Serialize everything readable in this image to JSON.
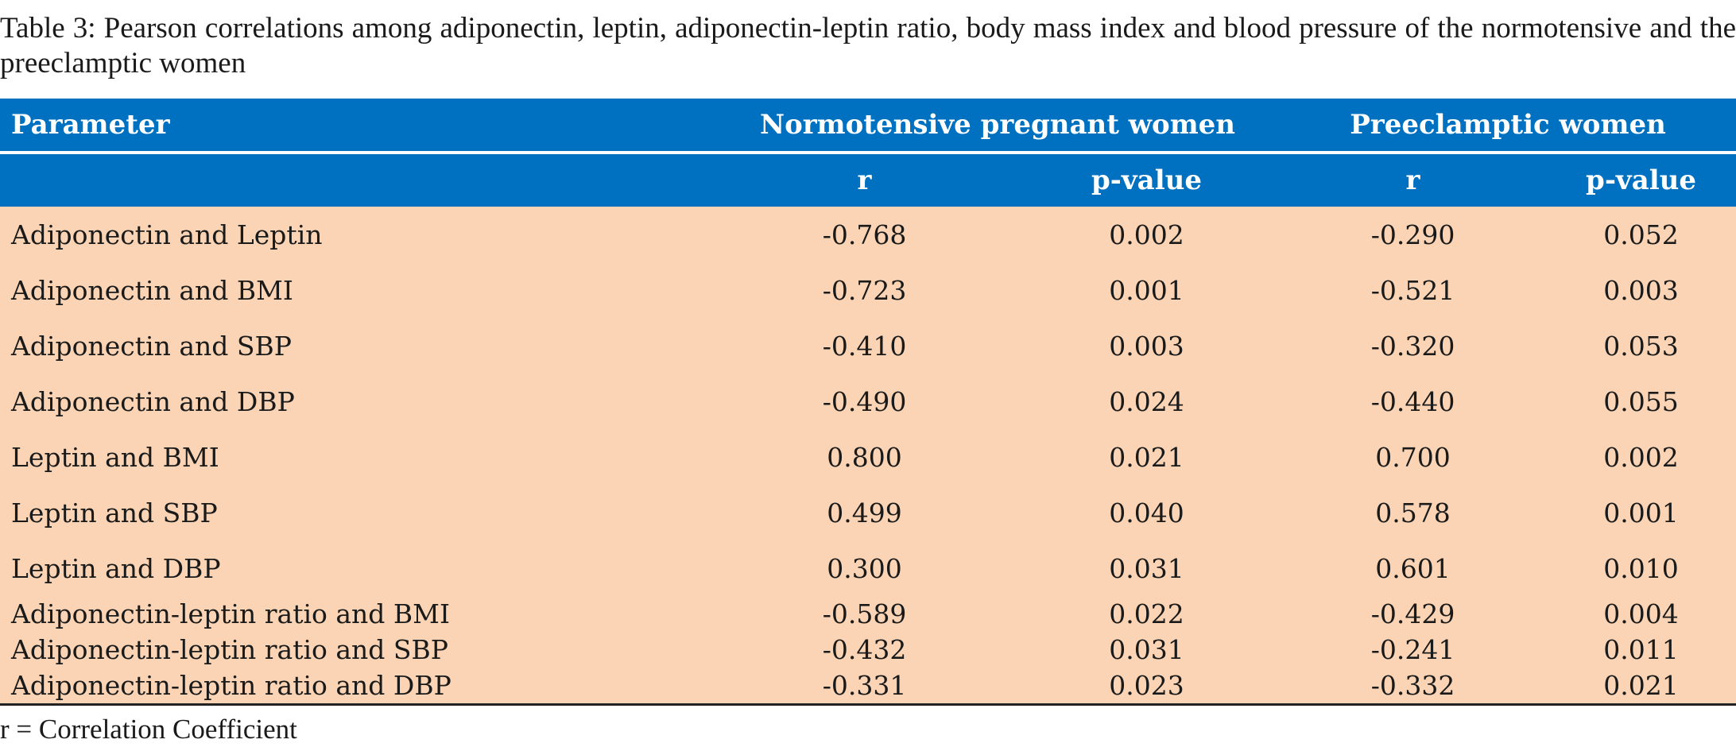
{
  "caption": "Table 3: Pearson correlations among adiponectin, leptin, adiponectin-leptin ratio, body mass index and blood pressure of the normotensive and the preeclamptic women",
  "header": {
    "parameter": "Parameter",
    "group1": "Normotensive pregnant women",
    "group2": "Preeclamptic women",
    "r": "r",
    "p": "p-value"
  },
  "colors": {
    "header_bg": "#0070c0",
    "body_bg": "#fad4b4"
  },
  "rows": [
    {
      "parameter": "Adiponectin and Leptin",
      "n_r": "-0.768",
      "n_p": "0.002",
      "p_r": "-0.290",
      "p_p": "0.052"
    },
    {
      "parameter": "Adiponectin and BMI",
      "n_r": "-0.723",
      "n_p": "0.001",
      "p_r": "-0.521",
      "p_p": "0.003"
    },
    {
      "parameter": "Adiponectin and SBP",
      "n_r": "-0.410",
      "n_p": "0.003",
      "p_r": "-0.320",
      "p_p": "0.053"
    },
    {
      "parameter": "Adiponectin and DBP",
      "n_r": "-0.490",
      "n_p": "0.024",
      "p_r": "-0.440",
      "p_p": "0.055"
    },
    {
      "parameter": "Leptin and BMI",
      "n_r": "0.800",
      "n_p": "0.021",
      "p_r": "0.700",
      "p_p": "0.002"
    },
    {
      "parameter": "Leptin and SBP",
      "n_r": "0.499",
      "n_p": "0.040",
      "p_r": "0.578",
      "p_p": "0.001"
    },
    {
      "parameter": "Leptin and DBP",
      "n_r": "0.300",
      "n_p": "0.031",
      "p_r": "0.601",
      "p_p": "0.010"
    },
    {
      "parameter": "Adiponectin-leptin ratio and BMI",
      "n_r": "-0.589",
      "n_p": "0.022",
      "p_r": "-0.429",
      "p_p": "0.004"
    },
    {
      "parameter": "Adiponectin-leptin ratio and SBP",
      "n_r": "-0.432",
      "n_p": "0.031",
      "p_r": "-0.241",
      "p_p": "0.011"
    },
    {
      "parameter": "Adiponectin-leptin ratio and DBP",
      "n_r": "-0.331",
      "n_p": "0.023",
      "p_r": "-0.332",
      "p_p": "0.021"
    }
  ],
  "footnote": "r = Correlation Coefficient"
}
